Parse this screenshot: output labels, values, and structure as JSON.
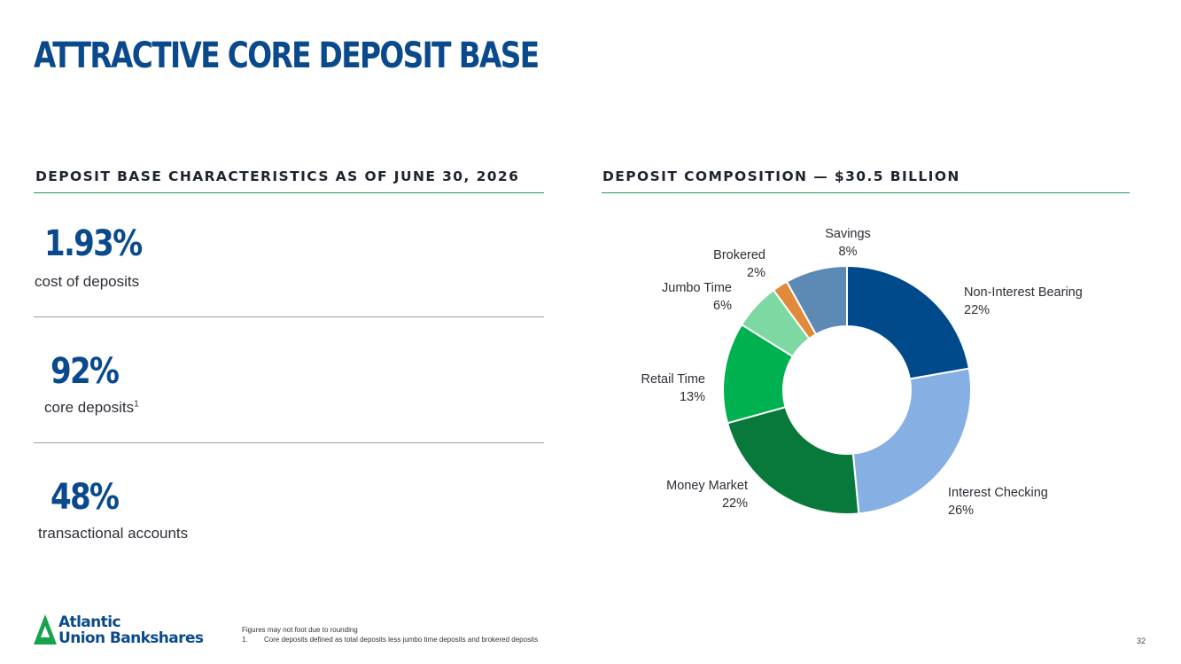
{
  "slide": {
    "title": "ATTRACTIVE CORE DEPOSIT BASE",
    "page_number": "32",
    "colors": {
      "title": "#0a4a8c",
      "rule": "#1f9a5a"
    }
  },
  "left": {
    "heading": "DEPOSIT BASE CHARACTERISTICS AS OF JUNE 30, 2026",
    "stats": [
      {
        "value": "1.93%",
        "label": "cost of deposits",
        "sup": ""
      },
      {
        "value": "92%",
        "label": "core deposits",
        "sup": "1"
      },
      {
        "value": "48%",
        "label": "transactional accounts",
        "sup": ""
      }
    ]
  },
  "right": {
    "heading": "DEPOSIT COMPOSITION — $30.5 BILLION"
  },
  "chart_data": {
    "type": "pie",
    "style": "donut",
    "title": "",
    "unit": "%",
    "categories": [
      "Non-Interest Bearing",
      "Interest Checking",
      "Money Market",
      "Retail Time",
      "Jumbo Time",
      "Brokered",
      "Savings"
    ],
    "values": [
      22,
      26,
      22,
      13,
      6,
      2,
      8
    ],
    "labels": [
      "22%",
      "26%",
      "22%",
      "13%",
      "6%",
      "2%",
      "8%"
    ],
    "colors": [
      "#004a8b",
      "#86b0e3",
      "#08793a",
      "#00b14f",
      "#7dd8a2",
      "#e08a3c",
      "#5d8ab5"
    ]
  },
  "footer": {
    "logo_line1": "Atlantic",
    "logo_line2": "Union Bankshares",
    "note1": "Figures may not foot due to rounding",
    "note2_num": "1.",
    "note2": "Core deposits defined as total deposits less jumbo time deposits and brokered deposits"
  }
}
